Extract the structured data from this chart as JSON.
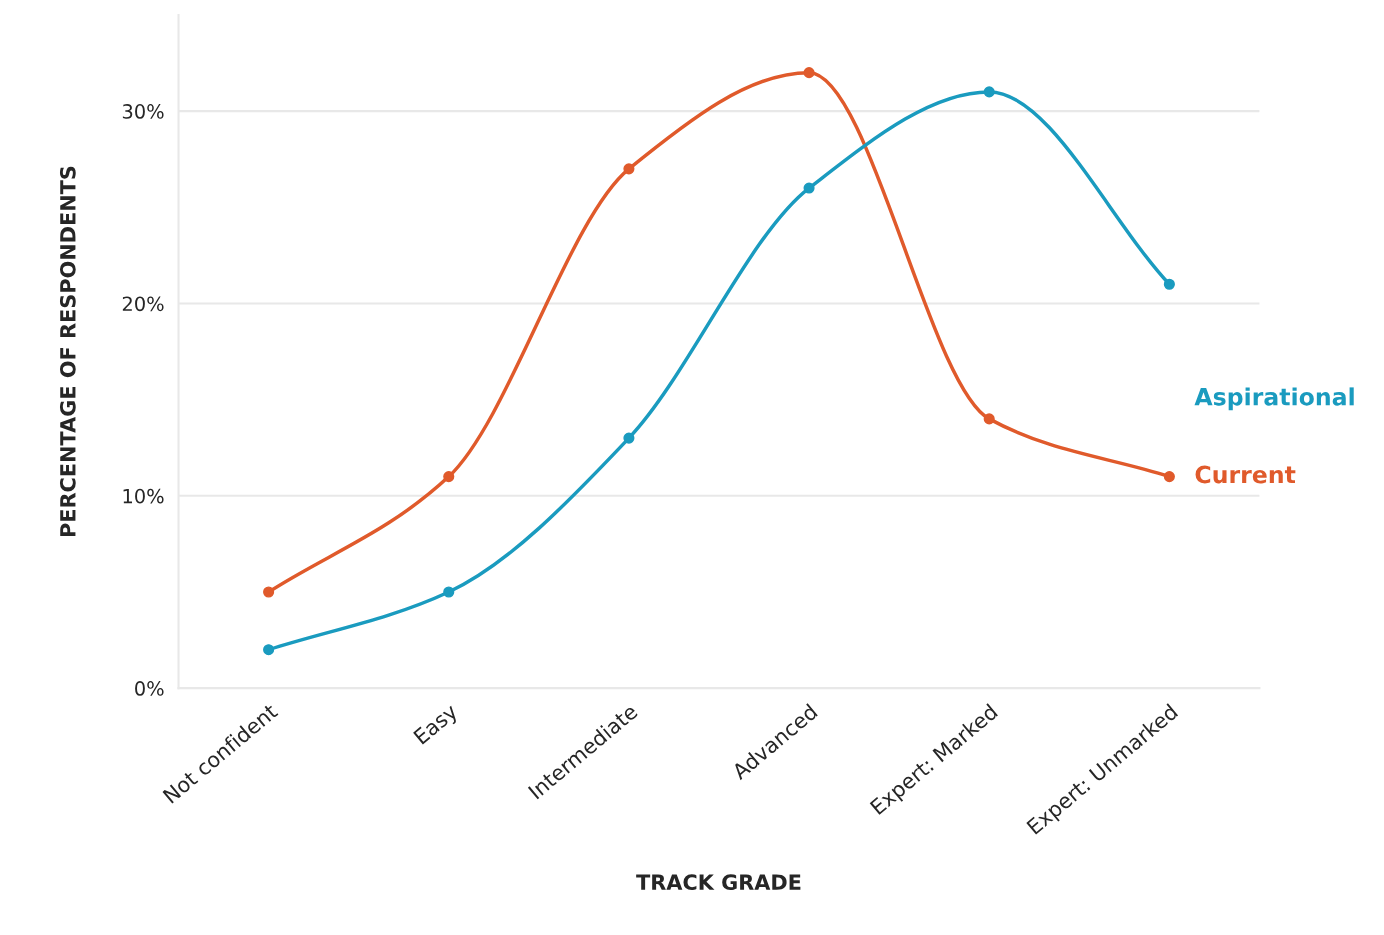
{
  "chart_data": {
    "type": "line",
    "xlabel": "TRACK GRADE",
    "ylabel": "PERCENTAGE OF RESPONDENTS",
    "categories": [
      "Not confident",
      "Easy",
      "Intermediate",
      "Advanced",
      "Expert: Marked",
      "Expert: Unmarked"
    ],
    "series": [
      {
        "name": "Current",
        "color": "#e05a2b",
        "values": [
          5,
          11,
          27,
          32,
          14,
          11
        ]
      },
      {
        "name": "Aspirational",
        "color": "#1a9bbf",
        "values": [
          2,
          5,
          13,
          26,
          31,
          21
        ]
      }
    ],
    "ylim": [
      0,
      35
    ],
    "yticks": [
      {
        "value": 0,
        "label": "0%"
      },
      {
        "value": 10,
        "label": "10%"
      },
      {
        "value": 20,
        "label": "20%"
      },
      {
        "value": 30,
        "label": "30%"
      }
    ],
    "grid": "y",
    "legend": false,
    "marker": "circle",
    "line_style": "solid"
  }
}
